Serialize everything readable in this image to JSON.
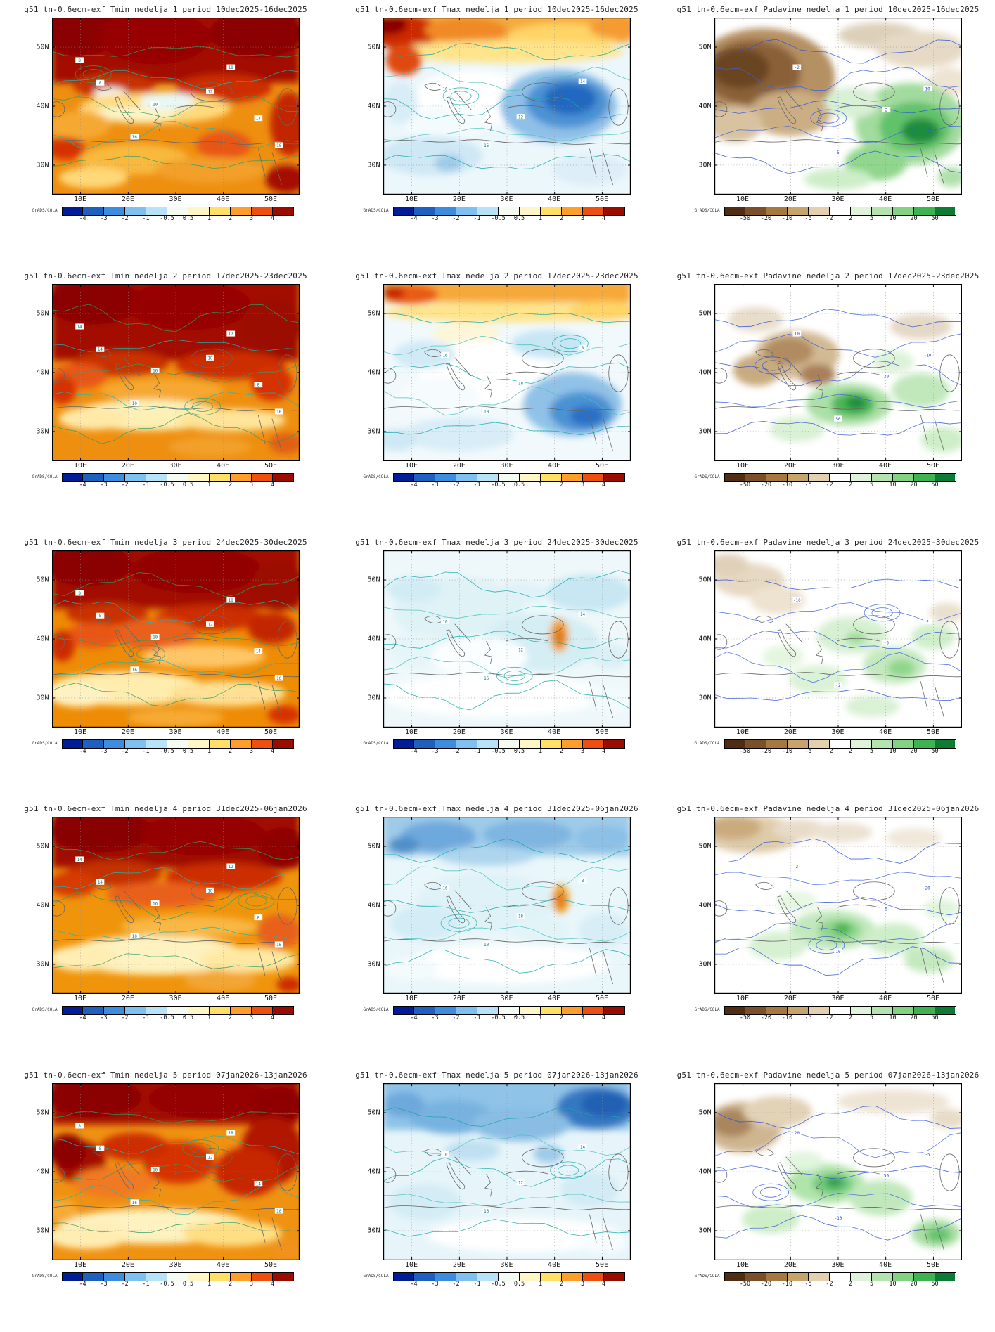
{
  "credit": "GrADS/COLA",
  "axis": {
    "lat_ticks": [
      "50N",
      "40N",
      "30N"
    ],
    "lon_ticks": [
      "10E",
      "20E",
      "30E",
      "40E",
      "50E"
    ]
  },
  "colorbars": {
    "temp": {
      "ticks": [
        "-4",
        "-3",
        "-2",
        "-1",
        "-0.5",
        "0.5",
        "1",
        "2",
        "3",
        "4"
      ],
      "colors": [
        "#001c96",
        "#1e5fc0",
        "#3c8ce0",
        "#7ec0f0",
        "#b8e2f8",
        "#f6fbf2",
        "#fff6c8",
        "#ffdf66",
        "#ff9e2a",
        "#ee4e0e",
        "#9a0c00"
      ]
    },
    "precip": {
      "ticks": [
        "-50",
        "-20",
        "-10",
        "-5",
        "-2",
        "2",
        "5",
        "10",
        "20",
        "50"
      ],
      "colors": [
        "#502d12",
        "#7a5028",
        "#a57840",
        "#c8a36c",
        "#e4d0ae",
        "#ffffff",
        "#dff3da",
        "#b4e4ae",
        "#82d282",
        "#3cb450",
        "#0c7c34"
      ]
    }
  },
  "contour_labels": {
    "temp": [
      "8",
      "10",
      "12",
      "14",
      "16",
      "18"
    ],
    "precip": [
      "-10",
      "-5",
      "-2",
      "2",
      "5",
      "10",
      "20",
      "50"
    ]
  },
  "panels": [
    {
      "title": "g51 tn-0.6ecm-exf Tmin nedelja 1 period 10dec2025-16dec2025",
      "variable": "Tmin",
      "week": "1",
      "period": "10dec2025-16dec2025",
      "colorbar": "temp"
    },
    {
      "title": "g51 tn-0.6ecm-exf Tmax nedelja 1 period 10dec2025-16dec2025",
      "variable": "Tmax",
      "week": "1",
      "period": "10dec2025-16dec2025",
      "colorbar": "temp"
    },
    {
      "title": "g51 tn-0.6ecm-exf Padavine nedelja 1 period 10dec2025-16dec2025",
      "variable": "Padavine",
      "week": "1",
      "period": "10dec2025-16dec2025",
      "colorbar": "precip"
    },
    {
      "title": "g51 tn-0.6ecm-exf Tmin nedelja 2 period 17dec2025-23dec2025",
      "variable": "Tmin",
      "week": "2",
      "period": "17dec2025-23dec2025",
      "colorbar": "temp"
    },
    {
      "title": "g51 tn-0.6ecm-exf Tmax nedelja 2 period 17dec2025-23dec2025",
      "variable": "Tmax",
      "week": "2",
      "period": "17dec2025-23dec2025",
      "colorbar": "temp"
    },
    {
      "title": "g51 tn-0.6ecm-exf Padavine nedelja 2 period 17dec2025-23dec2025",
      "variable": "Padavine",
      "week": "2",
      "period": "17dec2025-23dec2025",
      "colorbar": "precip"
    },
    {
      "title": "g51 tn-0.6ecm-exf Tmin nedelja 3 period 24dec2025-30dec2025",
      "variable": "Tmin",
      "week": "3",
      "period": "24dec2025-30dec2025",
      "colorbar": "temp"
    },
    {
      "title": "g51 tn-0.6ecm-exf Tmax nedelja 3 period 24dec2025-30dec2025",
      "variable": "Tmax",
      "week": "3",
      "period": "24dec2025-30dec2025",
      "colorbar": "temp"
    },
    {
      "title": "g51 tn-0.6ecm-exf Padavine nedelja 3 period 24dec2025-30dec2025",
      "variable": "Padavine",
      "week": "3",
      "period": "24dec2025-30dec2025",
      "colorbar": "precip"
    },
    {
      "title": "g51 tn-0.6ecm-exf Tmin nedelja 4 period 31dec2025-06jan2026",
      "variable": "Tmin",
      "week": "4",
      "period": "31dec2025-06jan2026",
      "colorbar": "temp"
    },
    {
      "title": "g51 tn-0.6ecm-exf Tmax nedelja 4 period 31dec2025-06jan2026",
      "variable": "Tmax",
      "week": "4",
      "period": "31dec2025-06jan2026",
      "colorbar": "temp"
    },
    {
      "title": "g51 tn-0.6ecm-exf Padavine nedelja 4 period 31dec2025-06jan2026",
      "variable": "Padavine",
      "week": "4",
      "period": "31dec2025-06jan2026",
      "colorbar": "precip"
    },
    {
      "title": "g51 tn-0.6ecm-exf Tmin nedelja 5 period 07jan2026-13jan2026",
      "variable": "Tmin",
      "week": "5",
      "period": "07jan2026-13jan2026",
      "colorbar": "temp"
    },
    {
      "title": "g51 tn-0.6ecm-exf Tmax nedelja 5 period 07jan2026-13jan2026",
      "variable": "Tmax",
      "week": "5",
      "period": "07jan2026-13jan2026",
      "colorbar": "temp"
    },
    {
      "title": "g51 tn-0.6ecm-exf Padavine nedelja 5 period 07jan2026-13jan2026",
      "variable": "Padavine",
      "week": "5",
      "period": "07jan2026-13jan2026",
      "colorbar": "precip"
    }
  ]
}
